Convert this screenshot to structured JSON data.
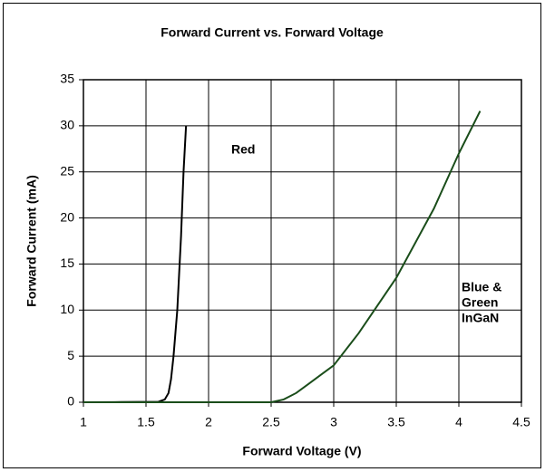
{
  "chart_data": {
    "type": "line",
    "title": "Forward Current vs. Forward Voltage",
    "x_label": "Forward Voltage (V)",
    "y_label": "Forward Current (mA)",
    "xlim": [
      1,
      4.5
    ],
    "xticks": [
      1,
      1.5,
      2,
      2.5,
      3,
      3.5,
      4,
      4.5
    ],
    "ylim": [
      0,
      35
    ],
    "yticks": [
      0,
      5,
      10,
      15,
      20,
      25,
      30,
      35
    ],
    "grid": true,
    "series": [
      {
        "name": "Red",
        "color": "#000000",
        "x": [
          1,
          1.3,
          1.6,
          1.65,
          1.68,
          1.7,
          1.72,
          1.75,
          1.78,
          1.8,
          1.82
        ],
        "values": [
          0,
          0.02,
          0.05,
          0.3,
          1,
          2.5,
          5,
          10,
          18,
          25,
          30
        ]
      },
      {
        "name": "Blue & Green InGaN",
        "color": "#1a4d1a",
        "x": [
          1,
          1.5,
          2,
          2.5,
          2.6,
          2.7,
          2.8,
          2.9,
          3,
          3.2,
          3.5,
          3.8,
          4,
          4.17
        ],
        "values": [
          0,
          0,
          0,
          0,
          0.3,
          1,
          2,
          3,
          4,
          7.5,
          13.5,
          21,
          27,
          31.6
        ]
      }
    ],
    "annotations": [
      {
        "lines": [
          "Red"
        ]
      },
      {
        "lines": [
          "Blue &",
          "Green",
          "InGaN"
        ]
      }
    ]
  }
}
